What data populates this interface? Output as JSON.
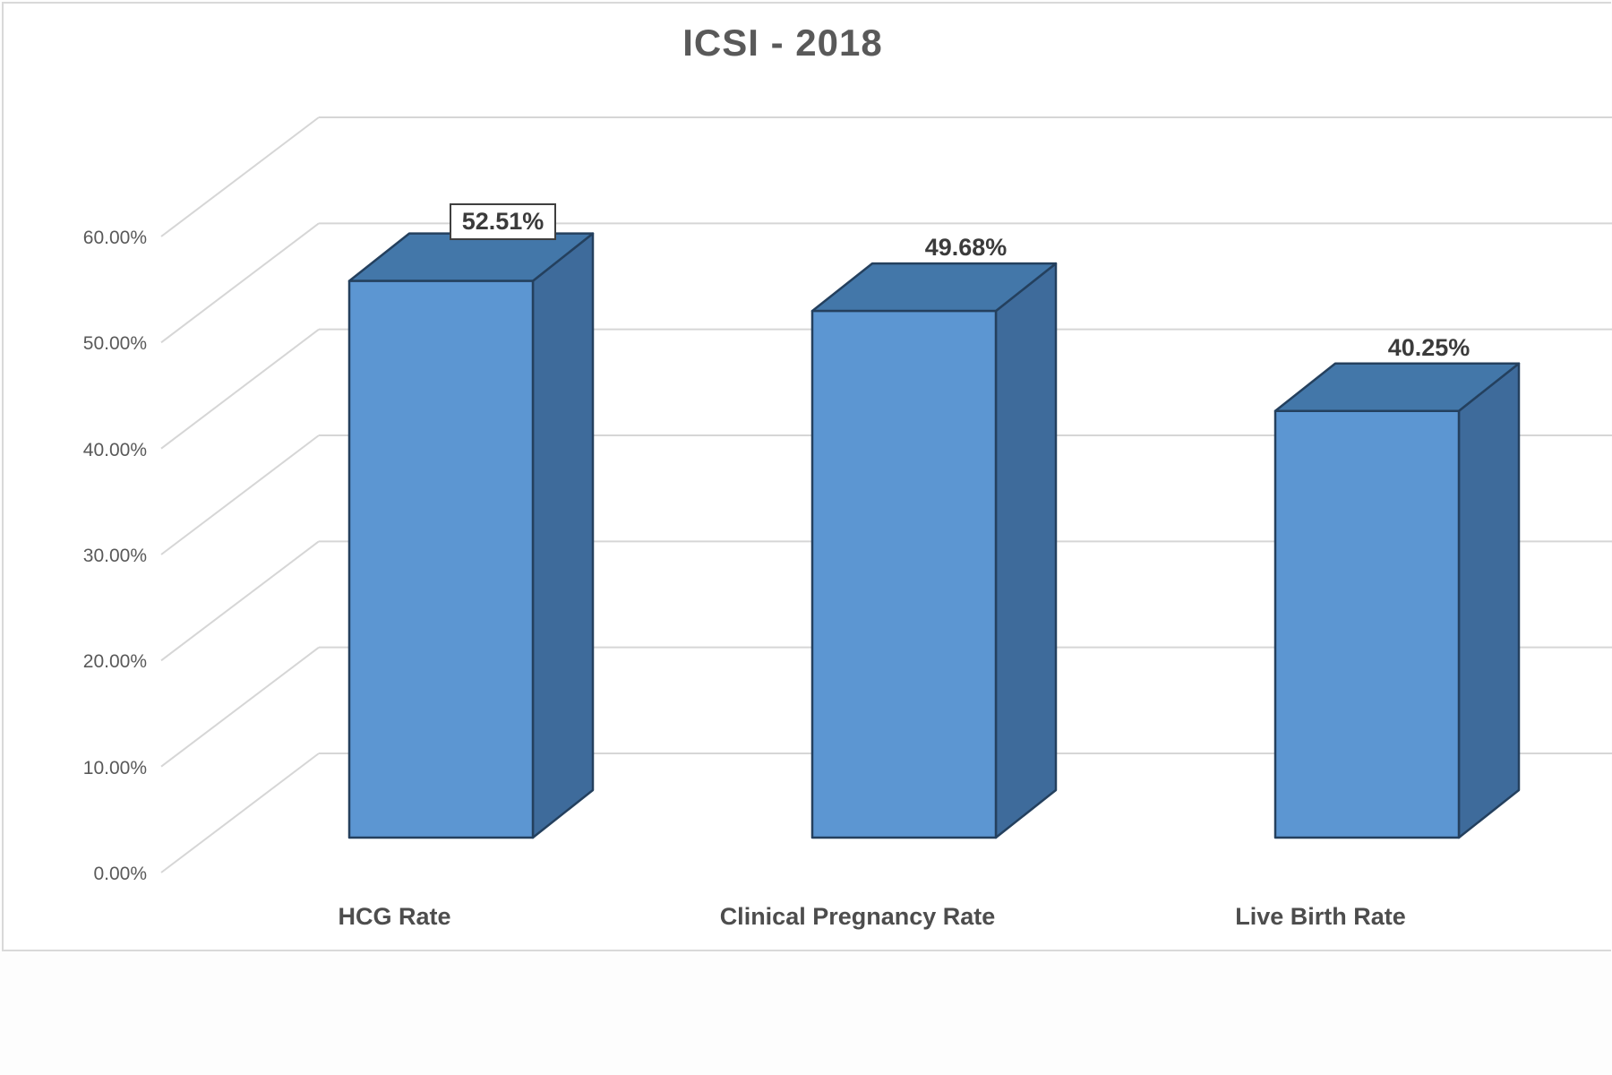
{
  "page": {
    "background": "#fdfdfd",
    "chart_background": "#ffffff",
    "chart_border_color": "#d9d9d9"
  },
  "chart_data": {
    "type": "bar",
    "subtype": "3d-column",
    "title": "ICSI - 2018",
    "categories": [
      "HCG Rate",
      "Clinical Pregnancy Rate",
      "Live Birth Rate"
    ],
    "values": [
      52.51,
      49.68,
      40.25
    ],
    "data_labels": [
      "52.51%",
      "49.68%",
      "40.25%"
    ],
    "data_label_boxed": [
      true,
      false,
      false
    ],
    "ylim": [
      0,
      60
    ],
    "ytick_step": 10,
    "ytick_labels": [
      "60.00%",
      "50.00%",
      "40.00%",
      "30.00%",
      "20.00%",
      "10.00%",
      "0.00%"
    ],
    "grid": true,
    "legend_position": "none",
    "colors": {
      "bar_front": "#5c96d2",
      "bar_top": "#4377a9",
      "bar_side": "#3e6b9b",
      "bar_outline": "#24405e",
      "gridline": "#d6d6d6",
      "axis_text": "#595959",
      "category_text": "#4d4d4d",
      "data_label_text": "#3b3b3b",
      "title_text": "#595959"
    }
  }
}
